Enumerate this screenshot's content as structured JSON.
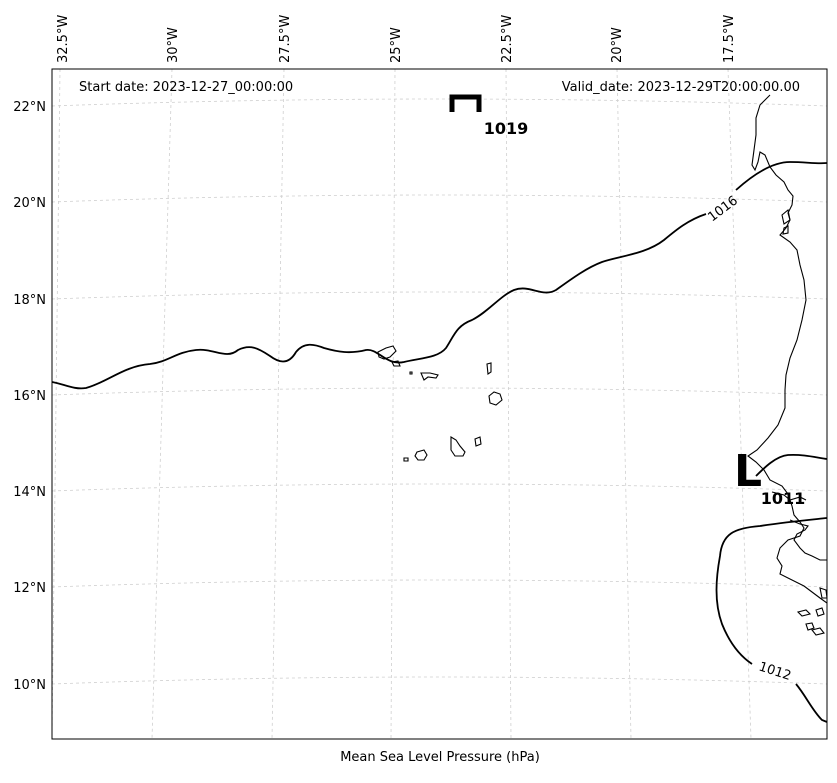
{
  "map": {
    "start_date": "Start date: 2023-12-27_00:00:00",
    "valid_date": "Valid_date: 2023-12-29T20:00:00.00",
    "caption": "Mean Sea Level Pressure (hPa)",
    "lon_ticks": [
      "32.5°W",
      "30°W",
      "27.5°W",
      "25°W",
      "22.5°W",
      "20°W",
      "17.5°W"
    ],
    "lat_ticks": [
      "22°N",
      "20°N",
      "18°N",
      "16°N",
      "14°N",
      "12°N",
      "10°N"
    ],
    "high_center": {
      "letter": "H",
      "value": "1019"
    },
    "low_center": {
      "letter": "L",
      "value": "1011"
    },
    "isobar_labels": {
      "c1016": "1016",
      "c1012": "1012"
    },
    "colors": {
      "isobar": "#000000",
      "coast": "#000000",
      "grid": "#cfcfcf"
    }
  }
}
